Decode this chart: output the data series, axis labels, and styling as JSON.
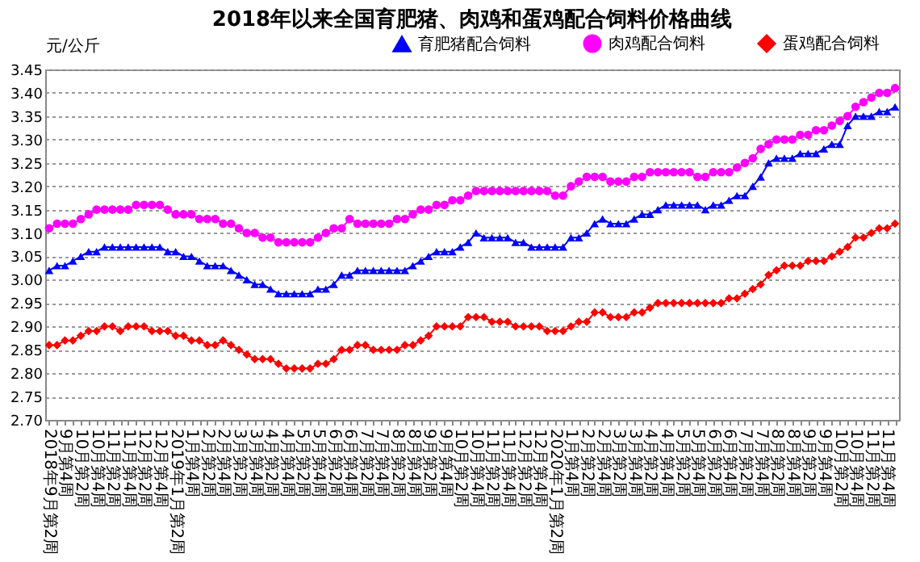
{
  "chart_data": {
    "type": "line",
    "title": "2018年以来全国育肥猪、肉鸡和蛋鸡配合饲料价格曲线",
    "ylabel": "元/公斤",
    "categories": [
      "2018年9月第2周",
      null,
      "9月第4周",
      null,
      "10月第2周",
      null,
      "10月第4周",
      null,
      "11月第2周",
      null,
      "11月第4周",
      null,
      "12月第2周",
      null,
      "12月第4周",
      null,
      "2019年1月第2周",
      null,
      "1月第4周",
      null,
      "2月第2周",
      null,
      "2月第4周",
      null,
      "3月第2周",
      null,
      "3月第4周",
      null,
      "4月第2周",
      null,
      "4月第4周",
      null,
      "5月第2周",
      null,
      "5月第4周",
      null,
      "6月第2周",
      null,
      "6月第4周",
      null,
      "7月第2周",
      null,
      "7月第4周",
      null,
      "8月第2周",
      null,
      "8月第4周",
      null,
      "9月第2周",
      null,
      "9月第4周",
      null,
      "10月第2周",
      null,
      "10月第4周",
      null,
      "11月第2周",
      null,
      "11月第4周",
      null,
      "12月第2周",
      null,
      "12月第4周",
      null,
      "2020年1月第2周",
      null,
      "1月第4周",
      null,
      "2月第2周",
      null,
      "2月第4周",
      null,
      "3月第2周",
      null,
      "3月第4周",
      null,
      "4月第2周",
      null,
      "4月第4周",
      null,
      "5月第2周",
      null,
      "5月第4周",
      null,
      "6月第2周",
      null,
      "6月第4周",
      null,
      "7月第2周",
      null,
      "7月第4周",
      null,
      "8月第2周",
      null,
      "8月第4周",
      null,
      "9月第2周",
      null,
      "9月第4周",
      null,
      "10月第2周",
      null,
      "10月第4周",
      null,
      "11月第2周",
      null,
      "11月第4周",
      null
    ],
    "series": [
      {
        "name": "育肥猪配合饲料",
        "color": "#0000ff",
        "marker": "triangle",
        "values": [
          3.02,
          3.03,
          3.03,
          3.04,
          3.05,
          3.06,
          3.06,
          3.07,
          3.07,
          3.07,
          3.07,
          3.07,
          3.07,
          3.07,
          3.07,
          3.06,
          3.06,
          3.05,
          3.05,
          3.04,
          3.03,
          3.03,
          3.03,
          3.02,
          3.01,
          3.0,
          2.99,
          2.99,
          2.98,
          2.97,
          2.97,
          2.97,
          2.97,
          2.97,
          2.98,
          2.98,
          2.99,
          3.01,
          3.01,
          3.02,
          3.02,
          3.02,
          3.02,
          3.02,
          3.02,
          3.02,
          3.03,
          3.04,
          3.05,
          3.06,
          3.06,
          3.06,
          3.07,
          3.08,
          3.1,
          3.09,
          3.09,
          3.09,
          3.09,
          3.08,
          3.08,
          3.07,
          3.07,
          3.07,
          3.07,
          3.07,
          3.09,
          3.09,
          3.1,
          3.12,
          3.13,
          3.12,
          3.12,
          3.12,
          3.13,
          3.14,
          3.14,
          3.15,
          3.16,
          3.16,
          3.16,
          3.16,
          3.16,
          3.15,
          3.16,
          3.16,
          3.17,
          3.18,
          3.18,
          3.2,
          3.22,
          3.25,
          3.26,
          3.26,
          3.26,
          3.27,
          3.27,
          3.27,
          3.28,
          3.29,
          3.29,
          3.33,
          3.35,
          3.35,
          3.35,
          3.36,
          3.36,
          3.37
        ]
      },
      {
        "name": "肉鸡配合饲料",
        "color": "#ff00ff",
        "marker": "circle",
        "values": [
          3.11,
          3.12,
          3.12,
          3.12,
          3.13,
          3.14,
          3.15,
          3.15,
          3.15,
          3.15,
          3.15,
          3.16,
          3.16,
          3.16,
          3.16,
          3.15,
          3.14,
          3.14,
          3.14,
          3.13,
          3.13,
          3.13,
          3.12,
          3.12,
          3.11,
          3.1,
          3.1,
          3.09,
          3.09,
          3.08,
          3.08,
          3.08,
          3.08,
          3.08,
          3.09,
          3.1,
          3.11,
          3.11,
          3.13,
          3.12,
          3.12,
          3.12,
          3.12,
          3.12,
          3.13,
          3.13,
          3.14,
          3.15,
          3.15,
          3.16,
          3.16,
          3.17,
          3.17,
          3.18,
          3.19,
          3.19,
          3.19,
          3.19,
          3.19,
          3.19,
          3.19,
          3.19,
          3.19,
          3.19,
          3.18,
          3.18,
          3.2,
          3.21,
          3.22,
          3.22,
          3.22,
          3.21,
          3.21,
          3.21,
          3.22,
          3.22,
          3.23,
          3.23,
          3.23,
          3.23,
          3.23,
          3.23,
          3.22,
          3.22,
          3.23,
          3.23,
          3.23,
          3.24,
          3.25,
          3.26,
          3.28,
          3.29,
          3.3,
          3.3,
          3.3,
          3.31,
          3.31,
          3.32,
          3.32,
          3.33,
          3.34,
          3.35,
          3.37,
          3.38,
          3.39,
          3.4,
          3.4,
          3.41
        ]
      },
      {
        "name": "蛋鸡配合饲料",
        "color": "#ff0000",
        "marker": "diamond",
        "values": [
          2.86,
          2.86,
          2.87,
          2.87,
          2.88,
          2.89,
          2.89,
          2.9,
          2.9,
          2.89,
          2.9,
          2.9,
          2.9,
          2.89,
          2.89,
          2.89,
          2.88,
          2.88,
          2.87,
          2.87,
          2.86,
          2.86,
          2.87,
          2.86,
          2.85,
          2.84,
          2.83,
          2.83,
          2.83,
          2.82,
          2.81,
          2.81,
          2.81,
          2.81,
          2.82,
          2.82,
          2.83,
          2.85,
          2.85,
          2.86,
          2.86,
          2.85,
          2.85,
          2.85,
          2.85,
          2.86,
          2.86,
          2.87,
          2.88,
          2.9,
          2.9,
          2.9,
          2.9,
          2.92,
          2.92,
          2.92,
          2.91,
          2.91,
          2.91,
          2.9,
          2.9,
          2.9,
          2.9,
          2.89,
          2.89,
          2.89,
          2.9,
          2.91,
          2.91,
          2.93,
          2.93,
          2.92,
          2.92,
          2.92,
          2.93,
          2.93,
          2.94,
          2.95,
          2.95,
          2.95,
          2.95,
          2.95,
          2.95,
          2.95,
          2.95,
          2.95,
          2.96,
          2.96,
          2.97,
          2.98,
          2.99,
          3.01,
          3.02,
          3.03,
          3.03,
          3.03,
          3.04,
          3.04,
          3.04,
          3.05,
          3.06,
          3.07,
          3.09,
          3.09,
          3.1,
          3.11,
          3.11,
          3.12
        ]
      }
    ],
    "ylim": [
      2.7,
      3.45
    ],
    "yticks": [
      {
        "value": 2.7,
        "label": "2.70"
      },
      {
        "value": 2.75,
        "label": "2.75"
      },
      {
        "value": 2.8,
        "label": "2.80"
      },
      {
        "value": 2.85,
        "label": "2.85"
      },
      {
        "value": 2.9,
        "label": "2.90"
      },
      {
        "value": 2.95,
        "label": "2.95"
      },
      {
        "value": 3.0,
        "label": "3.00"
      },
      {
        "value": 3.05,
        "label": "3.05"
      },
      {
        "value": 3.1,
        "label": "3.10"
      },
      {
        "value": 3.15,
        "label": "3.15"
      },
      {
        "value": 3.2,
        "label": "3.20"
      },
      {
        "value": 3.25,
        "label": "3.25"
      },
      {
        "value": 3.3,
        "label": "3.30"
      },
      {
        "value": 3.35,
        "label": "3.35"
      },
      {
        "value": 3.4,
        "label": "3.40"
      },
      {
        "value": 3.45,
        "label": "3.45"
      }
    ],
    "grid": "y",
    "legend": "top right",
    "line_style": "solid"
  }
}
